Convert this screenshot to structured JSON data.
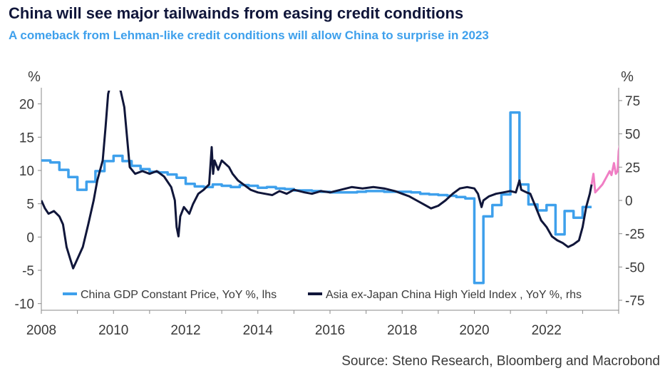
{
  "title": "China will see major tailwainds from easing credit conditions",
  "subtitle": "A comeback from Lehman-like credit conditions will allow China to surprise in 2023",
  "source": "Source: Steno Research, Bloomberg and Macrobond",
  "chart_data": {
    "type": "line",
    "left_axis": {
      "unit": "%",
      "range": [
        -11,
        22
      ],
      "ticks": [
        -10,
        -5,
        0,
        5,
        10,
        15,
        20
      ]
    },
    "right_axis": {
      "unit": "%",
      "range": [
        -82.5,
        82.5
      ],
      "ticks": [
        -75,
        -50,
        -25,
        0,
        25,
        50,
        75
      ]
    },
    "x_axis": {
      "range": [
        2008,
        2024
      ],
      "ticks": [
        "2008",
        "2010",
        "2012",
        "2014",
        "2016",
        "2018",
        "2020",
        "2022"
      ]
    },
    "grid": false,
    "legend_position": "bottom",
    "colors": {
      "gdp": "#3ea0ec",
      "hy": "#10163a",
      "hy_recent": "#f07ec4"
    },
    "series": [
      {
        "name": "China GDP Constant Price, YoY %, lhs",
        "axis": "left",
        "step": true,
        "color": "#3ea0ec",
        "points": [
          [
            2008.0,
            11.5
          ],
          [
            2008.25,
            11.2
          ],
          [
            2008.5,
            10.1
          ],
          [
            2008.75,
            9.0
          ],
          [
            2009.0,
            7.1
          ],
          [
            2009.25,
            8.3
          ],
          [
            2009.5,
            9.9
          ],
          [
            2009.75,
            11.4
          ],
          [
            2010.0,
            12.2
          ],
          [
            2010.25,
            11.4
          ],
          [
            2010.5,
            10.7
          ],
          [
            2010.75,
            10.2
          ],
          [
            2011.0,
            9.8
          ],
          [
            2011.25,
            9.7
          ],
          [
            2011.5,
            9.4
          ],
          [
            2011.75,
            8.9
          ],
          [
            2012.0,
            8.0
          ],
          [
            2012.25,
            7.6
          ],
          [
            2012.5,
            7.5
          ],
          [
            2012.75,
            7.9
          ],
          [
            2013.0,
            7.7
          ],
          [
            2013.25,
            7.5
          ],
          [
            2013.5,
            7.8
          ],
          [
            2013.75,
            7.7
          ],
          [
            2014.0,
            7.4
          ],
          [
            2014.25,
            7.5
          ],
          [
            2014.5,
            7.3
          ],
          [
            2014.75,
            7.2
          ],
          [
            2015.0,
            7.0
          ],
          [
            2015.25,
            7.0
          ],
          [
            2015.5,
            6.9
          ],
          [
            2015.75,
            6.8
          ],
          [
            2016.0,
            6.7
          ],
          [
            2016.25,
            6.7
          ],
          [
            2016.5,
            6.7
          ],
          [
            2016.75,
            6.8
          ],
          [
            2017.0,
            6.9
          ],
          [
            2017.25,
            6.9
          ],
          [
            2017.5,
            6.8
          ],
          [
            2017.75,
            6.8
          ],
          [
            2018.0,
            6.8
          ],
          [
            2018.25,
            6.7
          ],
          [
            2018.5,
            6.5
          ],
          [
            2018.75,
            6.4
          ],
          [
            2019.0,
            6.3
          ],
          [
            2019.25,
            6.2
          ],
          [
            2019.5,
            6.0
          ],
          [
            2019.75,
            5.8
          ],
          [
            2020.0,
            -6.9
          ],
          [
            2020.25,
            3.1
          ],
          [
            2020.5,
            4.8
          ],
          [
            2020.75,
            6.4
          ],
          [
            2021.0,
            18.7
          ],
          [
            2021.25,
            7.9
          ],
          [
            2021.5,
            4.9
          ],
          [
            2021.75,
            4.0
          ],
          [
            2022.0,
            4.8
          ],
          [
            2022.25,
            0.4
          ],
          [
            2022.5,
            3.9
          ],
          [
            2022.75,
            2.9
          ],
          [
            2023.0,
            4.5
          ],
          [
            2023.25,
            4.5
          ]
        ]
      },
      {
        "name": "Asia ex-Japan China High Yield Index , YoY %, rhs",
        "axis": "right",
        "color": "#10163a",
        "points": [
          [
            2008.0,
            0
          ],
          [
            2008.1,
            -6
          ],
          [
            2008.2,
            -10
          ],
          [
            2008.35,
            -8
          ],
          [
            2008.5,
            -12
          ],
          [
            2008.6,
            -18
          ],
          [
            2008.7,
            -35
          ],
          [
            2008.8,
            -44
          ],
          [
            2008.88,
            -51
          ],
          [
            2009.0,
            -44
          ],
          [
            2009.15,
            -35
          ],
          [
            2009.3,
            -18
          ],
          [
            2009.45,
            0
          ],
          [
            2009.55,
            15
          ],
          [
            2009.7,
            30
          ],
          [
            2009.78,
            55
          ],
          [
            2009.85,
            80
          ],
          [
            2009.9,
            85
          ],
          [
            2010.0,
            85
          ],
          [
            2010.15,
            85
          ],
          [
            2010.2,
            82
          ],
          [
            2010.3,
            70
          ],
          [
            2010.4,
            40
          ],
          [
            2010.45,
            25
          ],
          [
            2010.6,
            20
          ],
          [
            2010.8,
            22
          ],
          [
            2011.0,
            20
          ],
          [
            2011.2,
            22
          ],
          [
            2011.4,
            18
          ],
          [
            2011.6,
            10
          ],
          [
            2011.7,
            0
          ],
          [
            2011.75,
            -20
          ],
          [
            2011.8,
            -27
          ],
          [
            2011.85,
            -12
          ],
          [
            2011.95,
            -5
          ],
          [
            2012.1,
            -10
          ],
          [
            2012.2,
            -3
          ],
          [
            2012.35,
            5
          ],
          [
            2012.5,
            8
          ],
          [
            2012.65,
            12
          ],
          [
            2012.72,
            40
          ],
          [
            2012.76,
            20
          ],
          [
            2012.8,
            30
          ],
          [
            2012.9,
            23
          ],
          [
            2013.0,
            30
          ],
          [
            2013.2,
            25
          ],
          [
            2013.3,
            20
          ],
          [
            2013.45,
            15
          ],
          [
            2013.6,
            12
          ],
          [
            2013.8,
            8
          ],
          [
            2014.0,
            6
          ],
          [
            2014.2,
            5
          ],
          [
            2014.4,
            4
          ],
          [
            2014.6,
            7
          ],
          [
            2014.8,
            5
          ],
          [
            2015.0,
            8
          ],
          [
            2015.3,
            6
          ],
          [
            2015.5,
            5
          ],
          [
            2015.75,
            7
          ],
          [
            2016.0,
            6
          ],
          [
            2016.3,
            8
          ],
          [
            2016.6,
            10
          ],
          [
            2016.9,
            9
          ],
          [
            2017.2,
            10
          ],
          [
            2017.5,
            9
          ],
          [
            2017.8,
            7
          ],
          [
            2018.0,
            5
          ],
          [
            2018.2,
            3
          ],
          [
            2018.4,
            0
          ],
          [
            2018.6,
            -3
          ],
          [
            2018.8,
            -6
          ],
          [
            2019.0,
            -4
          ],
          [
            2019.2,
            0
          ],
          [
            2019.4,
            5
          ],
          [
            2019.6,
            9
          ],
          [
            2019.8,
            10
          ],
          [
            2020.0,
            9
          ],
          [
            2020.1,
            5
          ],
          [
            2020.2,
            -5
          ],
          [
            2020.25,
            0
          ],
          [
            2020.4,
            3
          ],
          [
            2020.6,
            5
          ],
          [
            2020.8,
            6
          ],
          [
            2021.0,
            7
          ],
          [
            2021.15,
            6
          ],
          [
            2021.25,
            15
          ],
          [
            2021.3,
            8
          ],
          [
            2021.45,
            6
          ],
          [
            2021.55,
            5
          ],
          [
            2021.7,
            -5
          ],
          [
            2021.85,
            -15
          ],
          [
            2022.0,
            -20
          ],
          [
            2022.15,
            -27
          ],
          [
            2022.3,
            -30
          ],
          [
            2022.45,
            -32
          ],
          [
            2022.6,
            -35
          ],
          [
            2022.75,
            -33
          ],
          [
            2022.9,
            -30
          ],
          [
            2023.0,
            -20
          ],
          [
            2023.1,
            -5
          ],
          [
            2023.2,
            5
          ],
          [
            2023.25,
            12
          ]
        ]
      },
      {
        "name": "",
        "axis": "right",
        "color": "#f07ec4",
        "points": [
          [
            2023.25,
            12
          ],
          [
            2023.3,
            20
          ],
          [
            2023.35,
            6
          ],
          [
            2023.45,
            9
          ],
          [
            2023.55,
            12
          ],
          [
            2023.65,
            17
          ],
          [
            2023.75,
            22
          ],
          [
            2023.8,
            19
          ],
          [
            2023.87,
            28
          ],
          [
            2023.92,
            20
          ],
          [
            2023.97,
            22
          ],
          [
            2024.0,
            37
          ],
          [
            2024.05,
            45
          ],
          [
            2024.1,
            48
          ]
        ]
      }
    ]
  }
}
